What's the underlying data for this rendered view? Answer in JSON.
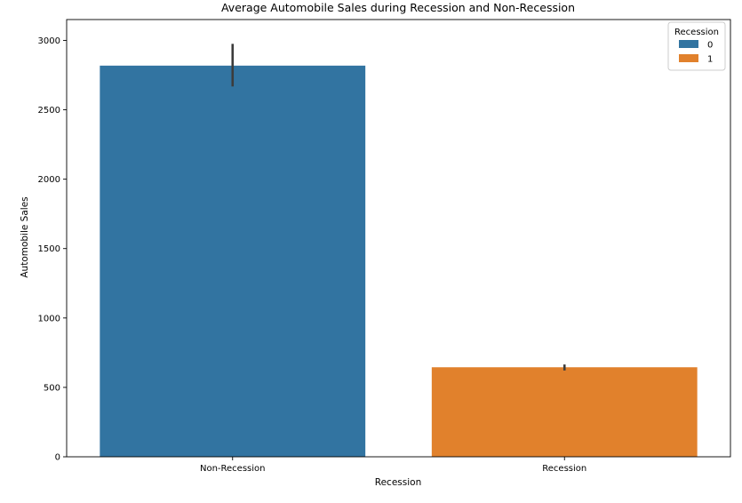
{
  "chart_data": {
    "type": "bar",
    "title": "Average Automobile Sales during Recession and Non-Recession",
    "xlabel": "Recession",
    "ylabel": "Automobile Sales",
    "categories": [
      "Non-Recession",
      "Recession"
    ],
    "series": [
      {
        "name": "0",
        "values": [
          2818,
          null
        ],
        "error_low": [
          2668,
          null
        ],
        "error_high": [
          2975,
          null
        ],
        "color": "#3274a1"
      },
      {
        "name": "1",
        "values": [
          null,
          645
        ],
        "error_low": [
          null,
          622
        ],
        "error_high": [
          null,
          665
        ],
        "color": "#e1812c"
      }
    ],
    "ylim": [
      0,
      3150
    ],
    "yticks": [
      0,
      500,
      1000,
      1500,
      2000,
      2500,
      3000
    ],
    "grid": false,
    "legend": {
      "title": "Recession",
      "position": "top-right"
    }
  }
}
